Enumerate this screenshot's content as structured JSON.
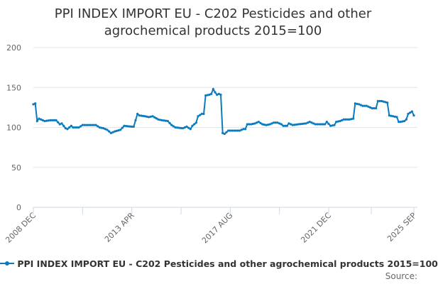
{
  "chart_data": {
    "type": "line",
    "title_line1": "PPI INDEX IMPORT EU - C202 Pesticides and other",
    "title_line2": "agrochemical products 2015=100",
    "x_start": "2008-12",
    "x_unit": "month",
    "x_count": 202,
    "xticks": [
      {
        "label": "2008 DEC",
        "month": 0
      },
      {
        "label": "2013 APR",
        "month": 52
      },
      {
        "label": "2017 AUG",
        "month": 104
      },
      {
        "label": "2021 DEC",
        "month": 156
      },
      {
        "label": "2025 SEP",
        "month": 201
      }
    ],
    "yticks": [
      0,
      50,
      100,
      150,
      200
    ],
    "ylim": [
      0,
      200
    ],
    "grid": true,
    "legend_position": "bottom",
    "series": [
      {
        "name": "PPI INDEX IMPORT EU - C202 Pesticides and other agrochemical products 2015=100",
        "color": "#0a7bc1",
        "points": [
          [
            0,
            129
          ],
          [
            1,
            130
          ],
          [
            2,
            108
          ],
          [
            3,
            111
          ],
          [
            4,
            110
          ],
          [
            6,
            108
          ],
          [
            9,
            109
          ],
          [
            12,
            109
          ],
          [
            14,
            104
          ],
          [
            15,
            105
          ],
          [
            17,
            99
          ],
          [
            18,
            98
          ],
          [
            20,
            102
          ],
          [
            21,
            100
          ],
          [
            24,
            100
          ],
          [
            26,
            103
          ],
          [
            29,
            103
          ],
          [
            33,
            103
          ],
          [
            35,
            100
          ],
          [
            37,
            99
          ],
          [
            39,
            97
          ],
          [
            41,
            93
          ],
          [
            43,
            95
          ],
          [
            46,
            97
          ],
          [
            48,
            102
          ],
          [
            52,
            101
          ],
          [
            53,
            101
          ],
          [
            55,
            117
          ],
          [
            56,
            115
          ],
          [
            59,
            114
          ],
          [
            61,
            113
          ],
          [
            63,
            114
          ],
          [
            66,
            110
          ],
          [
            68,
            109
          ],
          [
            71,
            108
          ],
          [
            73,
            103
          ],
          [
            75,
            100
          ],
          [
            79,
            99
          ],
          [
            81,
            101
          ],
          [
            83,
            98
          ],
          [
            84,
            102
          ],
          [
            86,
            106
          ],
          [
            87,
            114
          ],
          [
            89,
            117
          ],
          [
            90,
            117
          ],
          [
            91,
            140
          ],
          [
            93,
            141
          ],
          [
            94,
            142
          ],
          [
            95,
            148
          ],
          [
            96,
            144
          ],
          [
            97,
            141
          ],
          [
            98,
            142
          ],
          [
            99,
            141
          ],
          [
            100,
            93
          ],
          [
            101,
            92
          ],
          [
            103,
            96
          ],
          [
            106,
            96
          ],
          [
            109,
            96
          ],
          [
            111,
            98
          ],
          [
            112,
            98
          ],
          [
            113,
            104
          ],
          [
            115,
            104
          ],
          [
            117,
            105
          ],
          [
            119,
            107
          ],
          [
            121,
            104
          ],
          [
            123,
            103
          ],
          [
            125,
            104
          ],
          [
            127,
            106
          ],
          [
            129,
            106
          ],
          [
            131,
            104
          ],
          [
            132,
            102
          ],
          [
            134,
            102
          ],
          [
            135,
            105
          ],
          [
            137,
            103
          ],
          [
            140,
            104
          ],
          [
            144,
            105
          ],
          [
            146,
            107
          ],
          [
            147,
            106
          ],
          [
            149,
            104
          ],
          [
            152,
            104
          ],
          [
            154,
            104
          ],
          [
            155,
            107
          ],
          [
            157,
            102
          ],
          [
            159,
            103
          ],
          [
            160,
            107
          ],
          [
            162,
            108
          ],
          [
            164,
            110
          ],
          [
            167,
            110
          ],
          [
            169,
            111
          ],
          [
            170,
            130
          ],
          [
            172,
            129
          ],
          [
            174,
            127
          ],
          [
            176,
            127
          ],
          [
            177,
            126
          ],
          [
            179,
            124
          ],
          [
            181,
            124
          ],
          [
            182,
            133
          ],
          [
            184,
            133
          ],
          [
            187,
            131
          ],
          [
            188,
            115
          ],
          [
            190,
            114
          ],
          [
            192,
            113
          ],
          [
            193,
            107
          ],
          [
            194,
            107
          ],
          [
            196,
            108
          ],
          [
            197,
            110
          ],
          [
            198,
            117
          ],
          [
            200,
            120
          ],
          [
            201,
            115
          ]
        ]
      }
    ]
  },
  "source_label": "Source:"
}
